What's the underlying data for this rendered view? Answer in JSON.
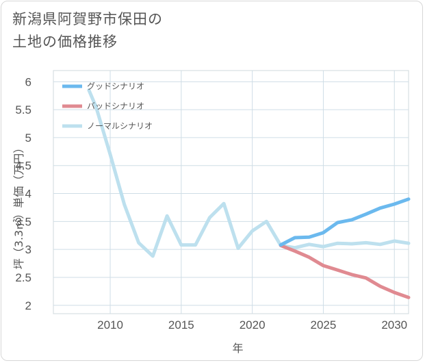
{
  "title": [
    "新潟県阿賀野市保田の",
    "土地の価格推移"
  ],
  "chart_data": {
    "type": "line",
    "xlabel": "年",
    "ylabel": "坪（3.3㎡）単価（万円）",
    "xlim": [
      2006,
      2031
    ],
    "ylim": [
      1.85,
      6.2
    ],
    "xticks": [
      2010,
      2015,
      2020,
      2025,
      2030
    ],
    "yticks": [
      2,
      2.5,
      3,
      3.5,
      4,
      4.5,
      5,
      5.5,
      6
    ],
    "grid": true,
    "legend_position": "top-left",
    "series": [
      {
        "name": "グッドシナリオ",
        "color": "#6bb9ee",
        "x": [
          2022,
          2023,
          2024,
          2025,
          2026,
          2027,
          2028,
          2029,
          2030,
          2031
        ],
        "y": [
          3.08,
          3.21,
          3.22,
          3.3,
          3.48,
          3.53,
          3.63,
          3.74,
          3.81,
          3.9
        ]
      },
      {
        "name": "バッドシナリオ",
        "color": "#e08a91",
        "x": [
          2022,
          2023,
          2024,
          2025,
          2026,
          2027,
          2028,
          2029,
          2030,
          2031
        ],
        "y": [
          3.07,
          2.97,
          2.86,
          2.71,
          2.63,
          2.55,
          2.49,
          2.34,
          2.23,
          2.14
        ]
      },
      {
        "name": "ノーマルシナリオ",
        "color": "#bde0ee",
        "x": [
          2008.5,
          2009,
          2010,
          2011,
          2012,
          2013,
          2014,
          2015,
          2016,
          2017,
          2018,
          2019,
          2020,
          2021,
          2022,
          2023,
          2024,
          2025,
          2026,
          2027,
          2028,
          2029,
          2030,
          2031
        ],
        "y": [
          5.85,
          5.55,
          4.7,
          3.8,
          3.12,
          2.88,
          3.6,
          3.08,
          3.08,
          3.57,
          3.82,
          3.02,
          3.33,
          3.5,
          3.07,
          3.03,
          3.09,
          3.05,
          3.11,
          3.1,
          3.12,
          3.09,
          3.15,
          3.11
        ]
      }
    ]
  }
}
